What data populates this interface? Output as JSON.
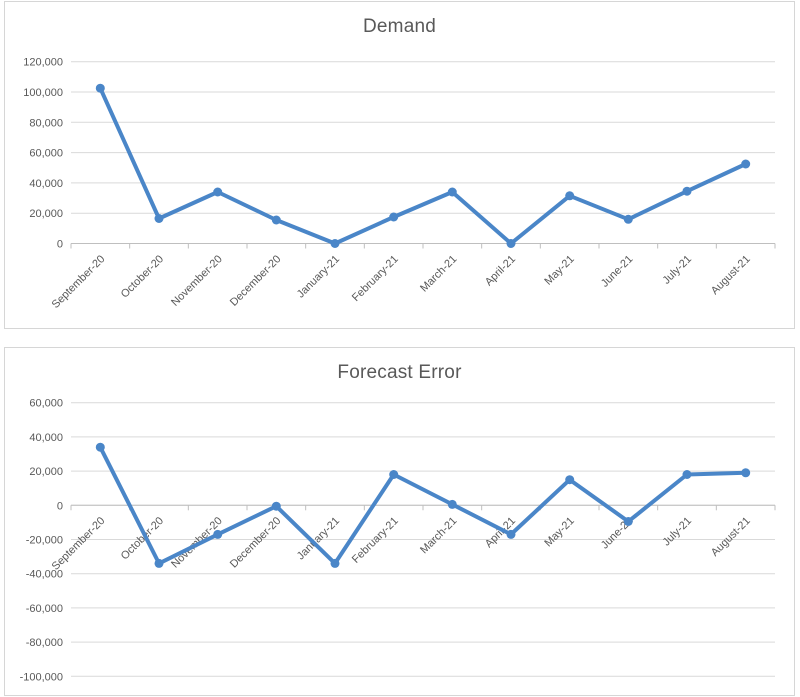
{
  "theme": {
    "line_color": "#4A86C8",
    "marker_color": "#4A86C8",
    "grid_color": "#D9D9D9",
    "axis_color": "#BFBFBF",
    "tick_label_color": "#595959",
    "title_color": "#595959",
    "panel_border_color": "#D6D6D6",
    "panel_background": "#FFFFFF"
  },
  "chart_data": [
    {
      "type": "line",
      "title": "Demand",
      "categories": [
        "September-20",
        "October-20",
        "November-20",
        "December-20",
        "January-21",
        "February-21",
        "March-21",
        "April-21",
        "May-21",
        "June-21",
        "July-21",
        "August-21"
      ],
      "series": [
        {
          "name": "Demand",
          "values": [
            102500,
            16500,
            34000,
            15500,
            0,
            17500,
            34000,
            0,
            31500,
            16000,
            34500,
            52500
          ]
        }
      ],
      "xlabel": "",
      "ylabel": "",
      "ylim": [
        0,
        120000
      ],
      "ytick_interval": 20000,
      "ytick_labels": [
        "0",
        "20,000",
        "40,000",
        "60,000",
        "80,000",
        "100,000",
        "120,000"
      ],
      "grid": true,
      "legend": "none",
      "x_label_rotation": -45,
      "markers": true
    },
    {
      "type": "line",
      "title": "Forecast Error",
      "categories": [
        "September-20",
        "October-20",
        "November-20",
        "December-20",
        "January-21",
        "February-21",
        "March-21",
        "April-21",
        "May-21",
        "June-21",
        "July-21",
        "August-21"
      ],
      "series": [
        {
          "name": "Forecast Error",
          "values": [
            34000,
            -34000,
            -17000,
            -500,
            -34000,
            18000,
            500,
            -17000,
            15000,
            -9500,
            18000,
            19000
          ]
        }
      ],
      "xlabel": "",
      "ylabel": "",
      "ylim": [
        -100000,
        60000
      ],
      "ytick_interval": 20000,
      "ytick_labels": [
        "-100,000",
        "-80,000",
        "-60,000",
        "-40,000",
        "-20,000",
        "0",
        "20,000",
        "40,000",
        "60,000"
      ],
      "grid": true,
      "legend": "none",
      "x_label_rotation": -45,
      "x_labels_at_zero_axis": true,
      "markers": true
    }
  ]
}
